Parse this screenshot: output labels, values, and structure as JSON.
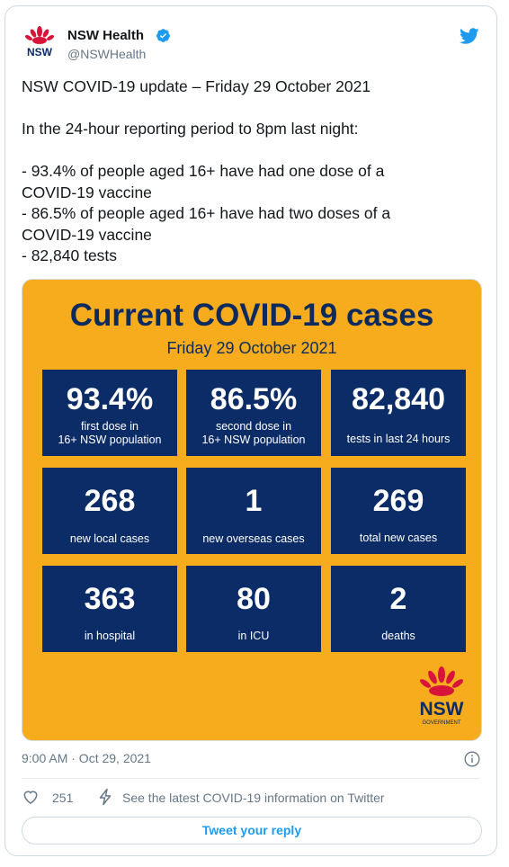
{
  "author": {
    "name": "NSW Health",
    "handle": "@NSWHealth",
    "logo_text": "NSW"
  },
  "tweet": {
    "lines": [
      "NSW COVID-19 update – Friday 29 October 2021",
      "",
      "In the 24-hour reporting period to 8pm last night:",
      "",
      "- 93.4% of people aged 16+ have had one dose of a",
      "COVID-19 vaccine",
      "- 86.5% of people aged 16+ have had two doses of a",
      "COVID-19 vaccine",
      "- 82,840 tests"
    ]
  },
  "infographic": {
    "title": "Current COVID-19 cases",
    "date": "Friday  29 October 2021",
    "tiles": [
      {
        "value": "93.4%",
        "label": "first dose in\n16+ NSW population"
      },
      {
        "value": "86.5%",
        "label": "second dose in\n16+ NSW population"
      },
      {
        "value": "82,840",
        "label": "tests in last 24 hours"
      },
      {
        "value": "268",
        "label": "new local cases"
      },
      {
        "value": "1",
        "label": "new overseas  cases"
      },
      {
        "value": "269",
        "label": "total new cases"
      },
      {
        "value": "363",
        "label": "in hospital"
      },
      {
        "value": "80",
        "label": "in ICU"
      },
      {
        "value": "2",
        "label": "deaths"
      }
    ],
    "logo_text": "NSW",
    "logo_subtext": "GOVERNMENT"
  },
  "meta": {
    "timestamp": "9:00 AM · Oct 29, 2021",
    "like_count": "251",
    "info_link": "See the latest COVID-19 information on Twitter",
    "reply_label": "Tweet your reply"
  },
  "colors": {
    "banner_bg": "#f6ac1c",
    "tile_bg": "#0c2c67",
    "title_text": "#0d2a5e",
    "accent": "#1d9bf0",
    "waratah_red": "#d7153a"
  },
  "icons": [
    "waratah-logo-icon",
    "verified-badge-icon",
    "twitter-bird-icon",
    "info-icon",
    "heart-icon",
    "bolt-icon"
  ]
}
